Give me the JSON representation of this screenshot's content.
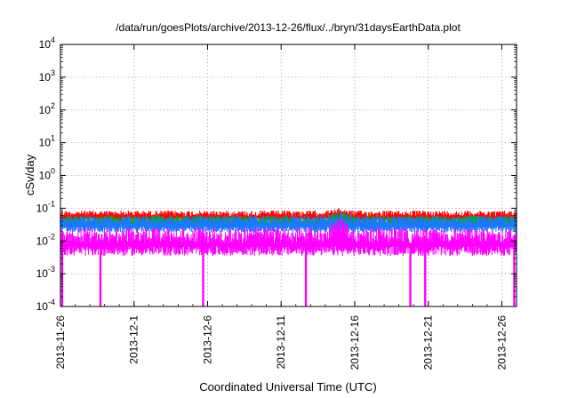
{
  "chart_data": {
    "type": "line",
    "title": "/data/run/goesPlots/archive/2013-12-26/flux/../bryn/31daysEarthData.plot",
    "xlabel": "Coordinated Universal Time (UTC)",
    "ylabel": "cSv/day",
    "y_scale": "log",
    "ylim": [
      0.0001,
      10000
    ],
    "y_ticks": [
      {
        "value": 0.0001,
        "base": "10",
        "exp": "-4"
      },
      {
        "value": 0.001,
        "base": "10",
        "exp": "-3"
      },
      {
        "value": 0.01,
        "base": "10",
        "exp": "-2"
      },
      {
        "value": 0.1,
        "base": "10",
        "exp": "-1"
      },
      {
        "value": 1,
        "base": "10",
        "exp": "0"
      },
      {
        "value": 10,
        "base": "10",
        "exp": "1"
      },
      {
        "value": 100,
        "base": "10",
        "exp": "2"
      },
      {
        "value": 1000,
        "base": "10",
        "exp": "3"
      },
      {
        "value": 10000,
        "base": "10",
        "exp": "4"
      }
    ],
    "xlim": [
      "2013-11-26",
      "2013-12-27"
    ],
    "x_ticks": [
      "2013-11-26",
      "2013-12-1",
      "2013-12-6",
      "2013-12-11",
      "2013-12-16",
      "2013-12-21",
      "2013-12-26"
    ],
    "grid": true,
    "legend": "none",
    "series": [
      {
        "color": "#ff0000",
        "level_min": 0.04,
        "level_max": 0.085
      },
      {
        "color": "#00aa00",
        "level_min": 0.025,
        "level_max": 0.06
      },
      {
        "color": "#1e78ff",
        "level_min": 0.018,
        "level_max": 0.06
      },
      {
        "color": "#ff00ff",
        "level_min": 0.0035,
        "level_max": 0.025
      }
    ],
    "peak": {
      "date": "2013-12-15",
      "value": 0.1
    },
    "dropouts": [
      "2013-11-26T03:00",
      "2013-11-28T17:00",
      "2013-12-05T17:00",
      "2013-12-12T16:00",
      "2013-12-19T19:00",
      "2013-12-20T19:00",
      "2013-12-26T20:00"
    ]
  }
}
